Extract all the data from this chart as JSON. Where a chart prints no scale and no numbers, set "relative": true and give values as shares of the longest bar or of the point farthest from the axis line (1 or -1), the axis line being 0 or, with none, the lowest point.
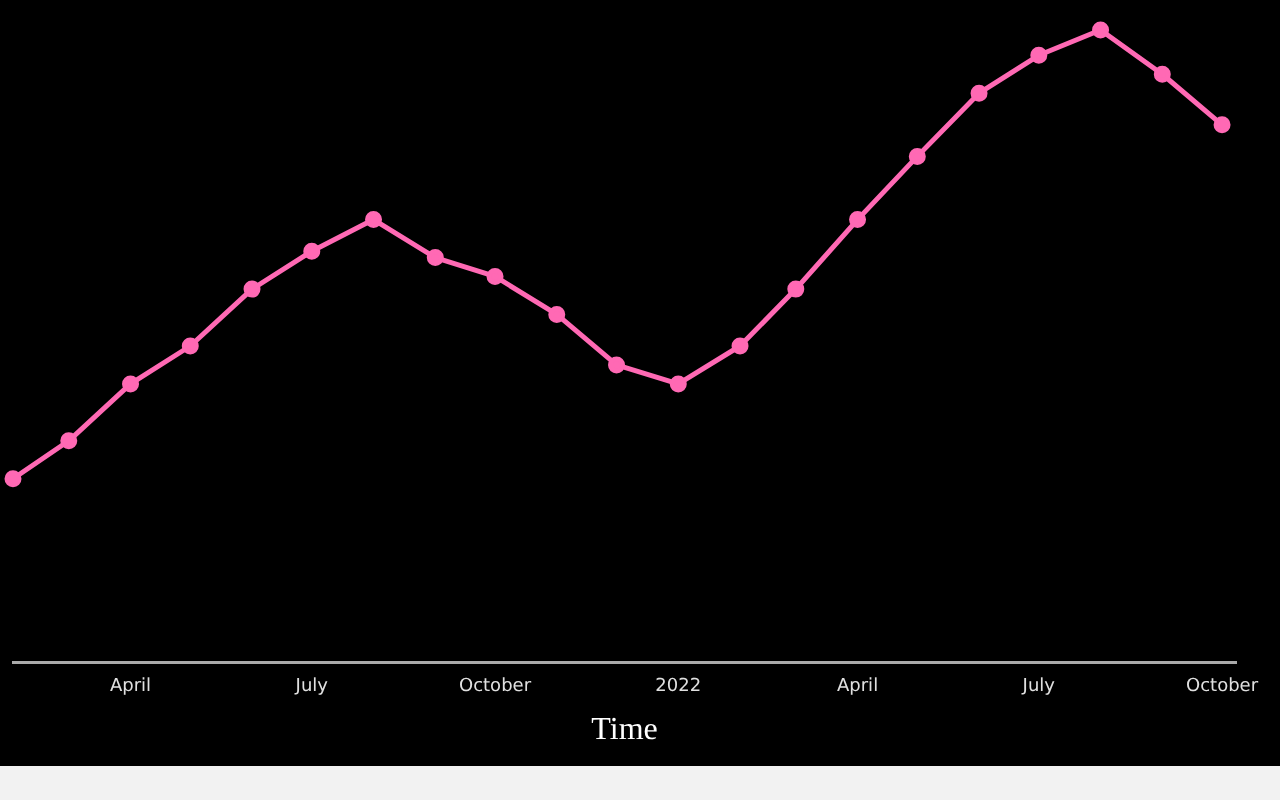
{
  "chart_data": {
    "type": "line",
    "xlabel": "Time",
    "relative": true,
    "x": [
      "2021-02",
      "2021-03",
      "2021-04",
      "2021-05",
      "2021-06",
      "2021-07",
      "2021-08",
      "2021-09",
      "2021-10",
      "2021-11",
      "2021-12",
      "2022-01",
      "2022-02",
      "2022-03",
      "2022-04",
      "2022-05",
      "2022-06",
      "2022-07",
      "2022-08",
      "2022-09",
      "2022-10"
    ],
    "series": [
      {
        "color": "#ff69b4",
        "values": [
          0.29,
          0.35,
          0.44,
          0.5,
          0.59,
          0.65,
          0.7,
          0.64,
          0.61,
          0.55,
          0.47,
          0.44,
          0.5,
          0.59,
          0.7,
          0.8,
          0.9,
          0.96,
          1,
          0.93,
          0.85
        ]
      }
    ],
    "xlim": [
      "2021-02-01",
      "2022-10-08"
    ],
    "xticks": [
      {
        "value": "2021-04-01",
        "label": "April"
      },
      {
        "value": "2021-07-01",
        "label": "July"
      },
      {
        "value": "2021-10-01",
        "label": "October"
      },
      {
        "value": "2022-01-01",
        "label": "2022"
      },
      {
        "value": "2022-04-01",
        "label": "April"
      },
      {
        "value": "2022-07-01",
        "label": "July"
      },
      {
        "value": "2022-10-01",
        "label": "October"
      }
    ],
    "grid": false,
    "legend": false,
    "marker": "circle",
    "line_style": "solid"
  }
}
